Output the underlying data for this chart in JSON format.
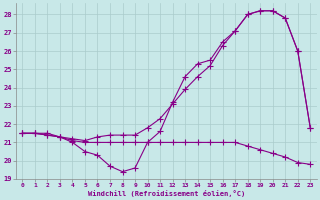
{
  "xlabel": "Windchill (Refroidissement éolien,°C)",
  "background_color": "#c8e8e8",
  "line_color": "#880088",
  "grid_color": "#aacccc",
  "xlim": [
    -0.5,
    23.5
  ],
  "ylim": [
    19,
    28.6
  ],
  "yticks": [
    19,
    20,
    21,
    22,
    23,
    24,
    25,
    26,
    27,
    28
  ],
  "xticks": [
    0,
    1,
    2,
    3,
    4,
    5,
    6,
    7,
    8,
    9,
    10,
    11,
    12,
    13,
    14,
    15,
    16,
    17,
    18,
    19,
    20,
    21,
    22,
    23
  ],
  "series1_x": [
    0,
    1,
    2,
    3,
    4,
    5,
    6,
    7,
    8,
    9,
    10,
    11,
    12,
    13,
    14,
    15,
    16,
    17,
    18,
    19,
    20,
    21,
    22,
    23
  ],
  "series1_y": [
    21.5,
    21.5,
    21.5,
    21.3,
    21.1,
    21.0,
    21.0,
    21.0,
    21.0,
    21.0,
    21.0,
    21.0,
    21.0,
    21.0,
    21.0,
    21.0,
    21.0,
    21.0,
    20.8,
    20.6,
    20.4,
    20.2,
    19.9,
    19.8
  ],
  "series2_x": [
    0,
    1,
    2,
    3,
    4,
    5,
    6,
    7,
    8,
    9,
    10,
    11,
    12,
    13,
    14,
    15,
    16,
    17,
    18,
    19,
    20,
    21,
    22,
    23
  ],
  "series2_y": [
    21.5,
    21.5,
    21.4,
    21.3,
    21.0,
    20.5,
    20.3,
    19.7,
    19.4,
    19.6,
    21.0,
    21.6,
    23.2,
    24.6,
    25.3,
    25.5,
    26.5,
    27.1,
    28.0,
    28.2,
    28.2,
    27.8,
    26.0,
    21.8
  ],
  "series3_x": [
    0,
    1,
    2,
    3,
    4,
    5,
    6,
    7,
    8,
    9,
    10,
    11,
    12,
    13,
    14,
    15,
    16,
    17,
    18,
    19,
    20,
    21,
    22,
    23
  ],
  "series3_y": [
    21.5,
    21.5,
    21.4,
    21.3,
    21.2,
    21.1,
    21.3,
    21.4,
    21.4,
    21.4,
    21.8,
    22.3,
    23.1,
    23.9,
    24.6,
    25.2,
    26.3,
    27.1,
    28.0,
    28.2,
    28.2,
    27.8,
    26.0,
    21.8
  ]
}
